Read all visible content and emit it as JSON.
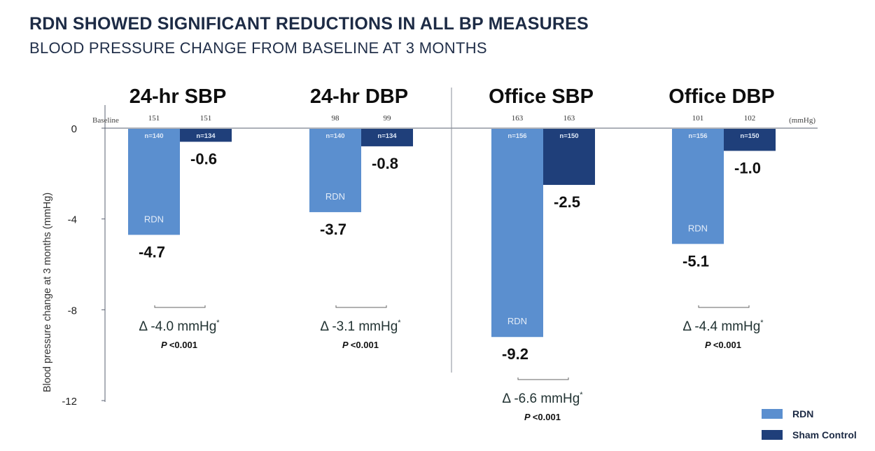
{
  "header": {
    "title": "RDN SHOWED SIGNIFICANT REDUCTIONS IN ALL BP MEASURES",
    "subtitle": "BLOOD PRESSURE CHANGE FROM BASELINE AT 3 MONTHS"
  },
  "colors": {
    "rdn": "#5b8fcf",
    "sham": "#1f3f7a",
    "axis": "#5a6170",
    "text": "#111111"
  },
  "chart_data": {
    "type": "bar",
    "ylabel": "Blood pressure change at 3 months (mmHg)",
    "ylim": [
      -12,
      0
    ],
    "yticks": [
      0,
      -4,
      -8,
      -12
    ],
    "baseline_label": "Baseline",
    "unit_label": "(mmHg)",
    "bar_label": "RDN",
    "series_names": [
      "RDN",
      "Sham Control"
    ],
    "groups": [
      {
        "title": "24-hr SBP",
        "baseline": [
          "151",
          "151"
        ],
        "n": [
          "n=140",
          "n=134"
        ],
        "values": [
          -4.7,
          -0.6
        ],
        "value_labels": [
          "-4.7",
          "-0.6"
        ],
        "delta": "Δ -4.0 mmHg",
        "p": "<0.001"
      },
      {
        "title": "24-hr DBP",
        "baseline": [
          "98",
          "99"
        ],
        "n": [
          "n=140",
          "n=134"
        ],
        "values": [
          -3.7,
          -0.8
        ],
        "value_labels": [
          "-3.7",
          "-0.8"
        ],
        "delta": "Δ -3.1 mmHg",
        "p": "<0.001"
      },
      {
        "title": "Office SBP",
        "baseline": [
          "163",
          "163"
        ],
        "n": [
          "n=156",
          "n=150"
        ],
        "values": [
          -9.2,
          -2.5
        ],
        "value_labels": [
          "-9.2",
          "-2.5"
        ],
        "delta": "Δ -6.6 mmHg",
        "p": "<0.001"
      },
      {
        "title": "Office DBP",
        "baseline": [
          "101",
          "102"
        ],
        "n": [
          "n=156",
          "n=150"
        ],
        "values": [
          -5.1,
          -1.0
        ],
        "value_labels": [
          "-5.1",
          "-1.0"
        ],
        "delta": "Δ -4.4 mmHg",
        "p": "<0.001"
      }
    ],
    "delta_marker": "*",
    "p_label": "P"
  },
  "legend": {
    "items": [
      {
        "label": "RDN"
      },
      {
        "label": "Sham Control"
      }
    ]
  }
}
